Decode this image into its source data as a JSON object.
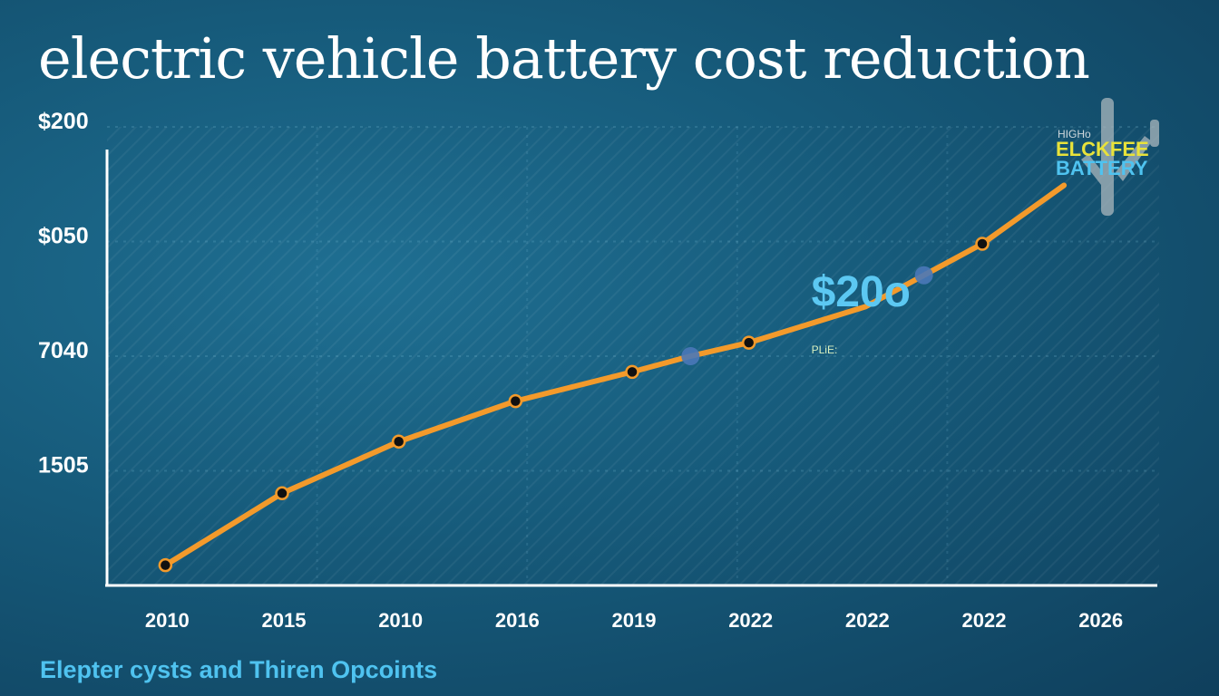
{
  "title": "electric vehicle  battery cost reduction",
  "caption": "Elepter cysts and Thiren Opcoints",
  "colors": {
    "background": "#165a7a",
    "line": "#f39a2b",
    "point": "#111111",
    "highlight_point": "#4a78b8",
    "axis": "#ffffff",
    "caption": "#4fc3f0"
  },
  "chart_data": {
    "type": "line",
    "title": "electric vehicle  battery cost reduction",
    "xlabel": "",
    "ylabel": "",
    "y_tick_labels": [
      "$200",
      "$050",
      "7040",
      "1505"
    ],
    "x_tick_labels": [
      "2010",
      "2015",
      "2010",
      "2016",
      "2019",
      "2022",
      "2022",
      "2022",
      "2026"
    ],
    "grid": true,
    "series": [
      {
        "points": [
          {
            "x": 0.5,
            "y": 9,
            "style": "dot"
          },
          {
            "x": 1.5,
            "y": 41,
            "style": "dot"
          },
          {
            "x": 2.5,
            "y": 64,
            "style": "dot"
          },
          {
            "x": 3.5,
            "y": 82,
            "style": "dot"
          },
          {
            "x": 4.5,
            "y": 95,
            "style": "dot"
          },
          {
            "x": 5,
            "y": 102,
            "style": "highlight"
          },
          {
            "x": 5.5,
            "y": 108,
            "style": "dot"
          },
          {
            "x": 6.5,
            "y": 124,
            "style": "none"
          },
          {
            "x": 7,
            "y": 138,
            "style": "highlight"
          },
          {
            "x": 7.5,
            "y": 152,
            "style": "dot"
          },
          {
            "x": 8.2,
            "y": 178,
            "style": "none"
          }
        ]
      }
    ],
    "annotations": [
      {
        "text": "$20o",
        "x": 6.3,
        "y": 125
      },
      {
        "text": "PLiE:",
        "x": 6.3,
        "y": 112
      }
    ],
    "badge": {
      "icon": "battery-plug-icon",
      "line1": "HIGHo",
      "line2": "ELCKFEE",
      "line3": "BATTERY"
    },
    "xlim": [
      0,
      9
    ],
    "ylim": [
      0,
      204
    ]
  }
}
